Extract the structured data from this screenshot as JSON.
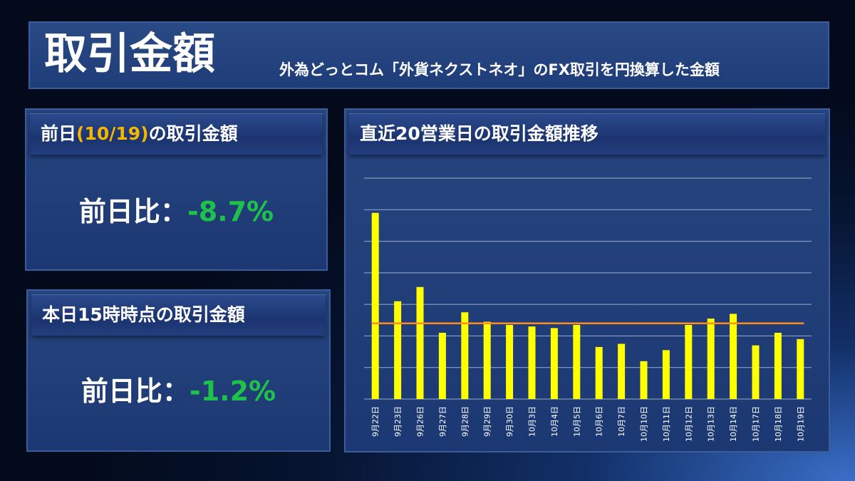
{
  "header": {
    "title": "取引金額",
    "subtitle": "外為どっとコム「外貨ネクストネオ」のFX取引を円換算した金額"
  },
  "prev_day_panel": {
    "title_prefix": "前日",
    "title_date": "(10/19)",
    "title_suffix": "の取引金額",
    "label": "前日比：",
    "value": "-8.7%"
  },
  "today_panel": {
    "title": "本日15時時点の取引金額",
    "label": "前日比：",
    "value": "-1.2%"
  },
  "chart_panel": {
    "title": "直近20営業日の取引金額推移"
  },
  "colors": {
    "bar": "#ffff00",
    "average_line": "#ff8c1a",
    "positive_text": "#1ec24a",
    "date_highlight": "#f5b700",
    "gridline": "#c8d2e6"
  },
  "chart_data": {
    "type": "bar",
    "categories": [
      "9月22日",
      "9月23日",
      "9月26日",
      "9月27日",
      "9月28日",
      "9月29日",
      "9月30日",
      "10月3日",
      "10月4日",
      "10月5日",
      "10月6日",
      "10月7日",
      "10月10日",
      "10月11日",
      "10月12日",
      "10月13日",
      "10月14日",
      "10月17日",
      "10月18日",
      "10月19日"
    ],
    "values": [
      5.9,
      3.1,
      3.55,
      2.1,
      2.75,
      2.45,
      2.35,
      2.3,
      2.25,
      2.35,
      1.65,
      1.75,
      1.2,
      1.55,
      2.35,
      2.55,
      2.7,
      1.7,
      2.1,
      1.9
    ],
    "average": 2.4,
    "ylim": [
      0,
      7
    ],
    "grid": true,
    "y_tick_labels_shown": false
  }
}
